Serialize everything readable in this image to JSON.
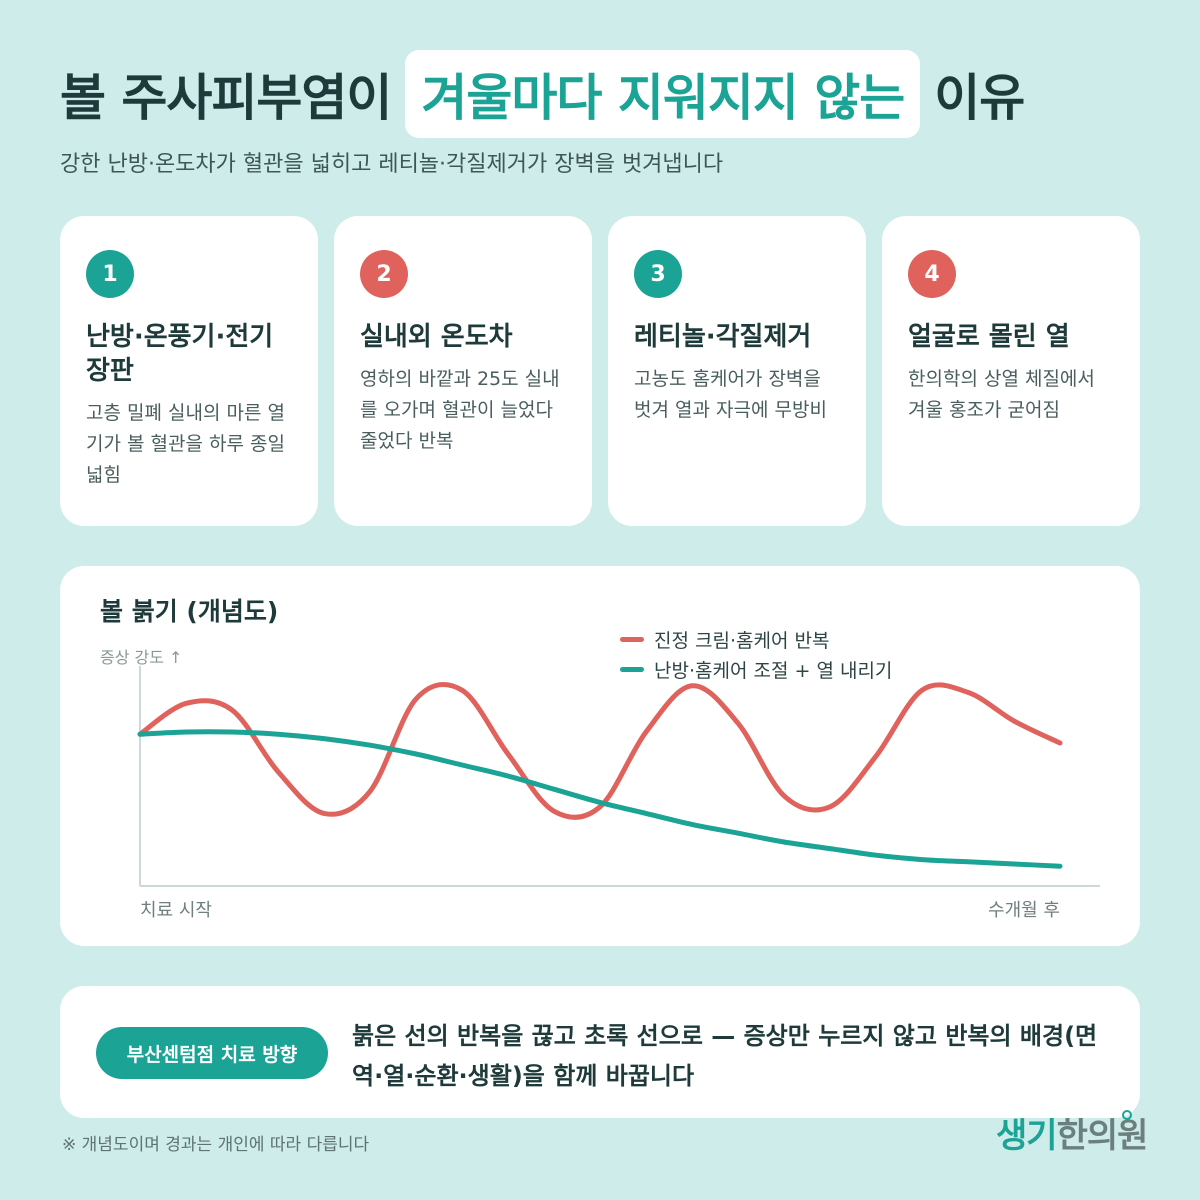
{
  "header": {
    "title_before": "볼 주사피부염이",
    "title_highlight": "겨울마다 지워지지 않는",
    "title_after": "이유",
    "subtitle": "강한 난방·온도차가 혈관을 넓히고 레티놀·각질제거가 장벽을 벗겨냅니다"
  },
  "cards": [
    {
      "num": "1",
      "title": "난방·온풍기·전기장판",
      "desc": "고층 밀폐 실내의 마른 열기가 볼 혈관을 하루 종일 넓힘",
      "badge_color": "#1ba396"
    },
    {
      "num": "2",
      "title": "실내외 온도차",
      "desc": "영하의 바깥과 25도 실내를 오가며 혈관이 늘었다 줄었다 반복",
      "badge_color": "#e0625c"
    },
    {
      "num": "3",
      "title": "레티놀·각질제거",
      "desc": "고농도 홈케어가 장벽을 벗겨 열과 자극에 무방비",
      "badge_color": "#1ba396"
    },
    {
      "num": "4",
      "title": "얼굴로 몰린 열",
      "desc": "한의학의 상열 체질에서 겨울 홍조가 굳어짐",
      "badge_color": "#e0625c"
    }
  ],
  "chart_data": {
    "type": "line",
    "title": "볼 붉기 (개념도)",
    "ylabel": "증상 강도 ↑",
    "x_start_label": "치료 시작",
    "x_end_label": "수개월 후",
    "x": [
      0,
      0.05,
      0.1,
      0.15,
      0.2,
      0.25,
      0.3,
      0.35,
      0.4,
      0.45,
      0.5,
      0.55,
      0.6,
      0.65,
      0.7,
      0.75,
      0.8,
      0.85,
      0.9,
      0.95,
      1.0
    ],
    "series": [
      {
        "name": "진정 크림·홈케어 반복",
        "color": "#e0625c",
        "values": [
          0.69,
          0.83,
          0.8,
          0.52,
          0.33,
          0.43,
          0.85,
          0.89,
          0.6,
          0.34,
          0.36,
          0.7,
          0.91,
          0.74,
          0.41,
          0.36,
          0.59,
          0.89,
          0.88,
          0.75,
          0.65
        ]
      },
      {
        "name": "난방·홈케어 조절 + 열 내리기",
        "color": "#1ba396",
        "values": [
          0.69,
          0.7,
          0.7,
          0.69,
          0.67,
          0.64,
          0.6,
          0.55,
          0.5,
          0.44,
          0.38,
          0.33,
          0.28,
          0.24,
          0.2,
          0.17,
          0.14,
          0.12,
          0.11,
          0.1,
          0.09
        ]
      }
    ],
    "ylim": [
      0,
      1
    ],
    "grid": false,
    "legend_position": "top-right"
  },
  "bottom": {
    "pill_label": "부산센텀점 치료 방향",
    "text": "붉은 선의 반복을 끊고 초록 선으로 — 증상만 누르지 않고 반복의 배경(면역·열·순환·생활)을 함께 바꿉니다"
  },
  "footnote": "※ 개념도이며 경과는 개인에 따라 다릅니다",
  "logo": {
    "part1": "생기",
    "part2": "한의원"
  }
}
